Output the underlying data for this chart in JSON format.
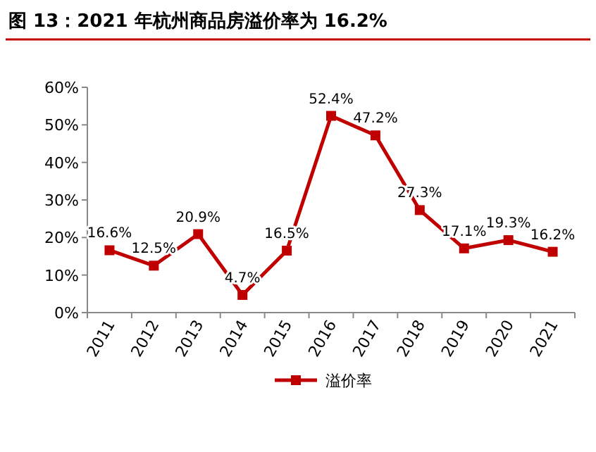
{
  "chart_data": {
    "type": "line",
    "title": "图 13：2021 年杭州商品房溢价率为 16.2%",
    "categories": [
      "2011",
      "2012",
      "2013",
      "2014",
      "2015",
      "2016",
      "2017",
      "2018",
      "2019",
      "2020",
      "2021"
    ],
    "series": [
      {
        "name": "溢价率",
        "color": "#c00000",
        "values": [
          16.6,
          12.5,
          20.9,
          4.7,
          16.5,
          52.4,
          47.2,
          27.3,
          17.1,
          19.3,
          16.2
        ],
        "value_labels": [
          "16.6%",
          "12.5%",
          "20.9%",
          "4.7%",
          "16.5%",
          "52.4%",
          "47.2%",
          "27.3%",
          "17.1%",
          "19.3%",
          "16.2%"
        ]
      }
    ],
    "ylim": [
      0,
      60
    ],
    "yticks": [
      {
        "value": 0,
        "label": "0%"
      },
      {
        "value": 10,
        "label": "10%"
      },
      {
        "value": 20,
        "label": "20%"
      },
      {
        "value": 30,
        "label": "30%"
      },
      {
        "value": 40,
        "label": "40%"
      },
      {
        "value": 50,
        "label": "50%"
      },
      {
        "value": 60,
        "label": "60%"
      }
    ],
    "grid": false,
    "legend": "bottom",
    "marker": "square",
    "line_style": "solid"
  }
}
